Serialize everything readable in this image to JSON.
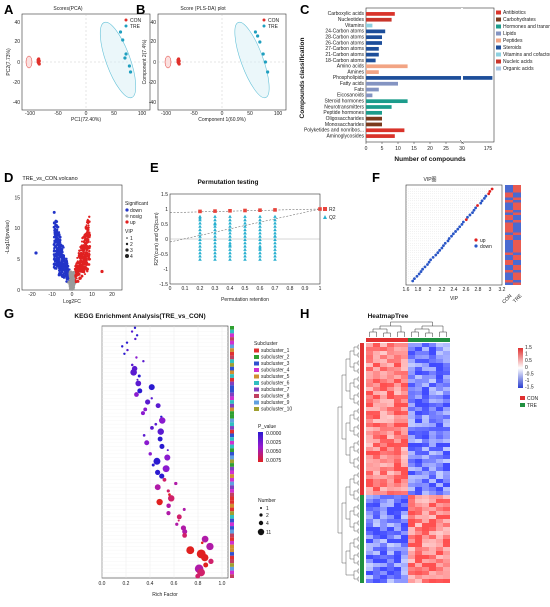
{
  "panels": {
    "A": {
      "letter": "A",
      "title": "Scores(PCA)",
      "xlabel": "PC1(72.40%)",
      "ylabel": "PC2(7.73%)",
      "legend": [
        "CON",
        "TRE"
      ],
      "colors": {
        "CON": "#e0302b",
        "TRE": "#1f9fbf"
      },
      "xticks": [
        "-100",
        "-50",
        "0",
        "50",
        "100"
      ],
      "yticks": [
        "40",
        "20",
        "0",
        "-20",
        "-40"
      ]
    },
    "B": {
      "letter": "B",
      "title": "Score (PLS-DA) plot",
      "xlabel": "Component 1(60.9%)",
      "ylabel": "Component 2(7.4%)",
      "legend": [
        "CON",
        "TRE"
      ],
      "xticks": [
        "-100",
        "-50",
        "0",
        "50",
        "100"
      ],
      "yticks": [
        "40",
        "20",
        "0",
        "-20",
        "-40"
      ]
    },
    "C": {
      "letter": "C",
      "ylabel": "Compounds classification",
      "xlabel": "Number of compounds",
      "xticks": [
        "0",
        "5",
        "10",
        "15",
        "20",
        "25",
        "30",
        "175"
      ],
      "legend": [
        {
          "name": "Antibiotics",
          "color": "#d9332a"
        },
        {
          "name": "Carbohydrates",
          "color": "#7b3a1d"
        },
        {
          "name": "Hormones and transmitters",
          "color": "#1c9c8c"
        },
        {
          "name": "Lipids",
          "color": "#8494c2"
        },
        {
          "name": "Peptides",
          "color": "#f2a484"
        },
        {
          "name": "Steroids",
          "color": "#1d4e9a"
        },
        {
          "name": "Vitamins and cofactors",
          "color": "#8dd0e0"
        },
        {
          "name": "Nucleic acids",
          "color": "#c9352b"
        },
        {
          "name": "Organic acids",
          "color": "#a7c6e3"
        }
      ]
    },
    "D": {
      "letter": "D",
      "title": "TRE_vs_CON.volcano",
      "xlabel": "Log2FC",
      "ylabel": "-Log10(pvalue)",
      "legend_title": "Significant",
      "legend": [
        {
          "name": "down",
          "color": "#2234c8"
        },
        {
          "name": "nosig",
          "color": "#9a9a9a"
        },
        {
          "name": "up",
          "color": "#e02020"
        }
      ],
      "vip_title": "VIP",
      "vip_values": [
        "1",
        "2",
        "3",
        "4"
      ],
      "xticks": [
        "-20",
        "-10",
        "0",
        "10",
        "20"
      ],
      "yticks": [
        "0",
        "5",
        "10",
        "15"
      ]
    },
    "E": {
      "letter": "E",
      "title": "Permutation testing",
      "xlabel": "Permutation retention",
      "ylabel": "R2Y(cum) and Q2(cum)",
      "legend": [
        {
          "name": "R2",
          "color": "#e8453c"
        },
        {
          "name": "Q2",
          "color": "#28b0d0"
        }
      ],
      "xticks": [
        "0",
        "0.1",
        "0.2",
        "0.3",
        "0.4",
        "0.5",
        "0.6",
        "0.7",
        "0.8",
        "0.9",
        "1"
      ],
      "yticks": [
        "1.5",
        "1",
        "0.5",
        "0",
        "-0.5",
        "-1",
        "-1.5"
      ]
    },
    "F": {
      "letter": "F",
      "title": "VIP图",
      "xlabel": "VIP",
      "xticks": [
        "1.6",
        "1.8",
        "2",
        "2.2",
        "2.4",
        "2.6",
        "2.8",
        "3",
        "3.2"
      ],
      "legend": [
        {
          "name": "up",
          "color": "#e02020"
        },
        {
          "name": "down",
          "color": "#2a56c6"
        }
      ],
      "heat_cols": [
        "CON",
        "TRE"
      ]
    },
    "G": {
      "letter": "G",
      "title": "KEGG Enrichment Analysis(TRE_vs_CON)",
      "xlabel": "Rich Factor",
      "xticks": [
        "0.0",
        "0.2",
        "0.4",
        "0.6",
        "0.8",
        "1.0"
      ],
      "pvalue_title": "P_value",
      "pvalue_ticks": [
        "0.0000",
        "0.0025",
        "0.0050",
        "0.0075"
      ],
      "number_title": "Number",
      "number_values": [
        "1",
        "2",
        "4",
        "11"
      ],
      "subcluster_title": "Subcluster",
      "subclusters": [
        "subcluster_1",
        "subcluster_2",
        "subcluster_3",
        "subcluster_4",
        "subcluster_5",
        "subcluster_6",
        "subcluster_7",
        "subcluster_8",
        "subcluster_9",
        "subcluster_10"
      ],
      "subcluster_colors": [
        "#e03030",
        "#30a030",
        "#3050d0",
        "#d030d0",
        "#d09030",
        "#30c0c0",
        "#8040c0",
        "#c04060",
        "#60a0e0",
        "#a0a030"
      ]
    },
    "H": {
      "letter": "H",
      "title": "HeatmapTree",
      "legend": [
        {
          "name": "CON",
          "color": "#e03030"
        },
        {
          "name": "TRE",
          "color": "#209040"
        }
      ],
      "scale_ticks": [
        "1.5",
        "1",
        "0.5",
        "0",
        "-0.5",
        "-1",
        "-1.5"
      ]
    }
  },
  "chart_data": [
    {
      "type": "scatter",
      "title": "Scores(PCA)",
      "xlabel": "PC1(72.40%)",
      "ylabel": "PC2(7.73%)",
      "series": [
        {
          "name": "CON",
          "points": [
            [
              -85,
              3
            ],
            [
              -84,
              1
            ],
            [
              -86,
              0
            ],
            [
              -85,
              -1
            ],
            [
              -84,
              -2
            ],
            [
              -86,
              2
            ]
          ]
        },
        {
          "name": "TRE",
          "points": [
            [
              62,
              30
            ],
            [
              66,
              22
            ],
            [
              72,
              8
            ],
            [
              70,
              4
            ],
            [
              78,
              -4
            ],
            [
              80,
              -10
            ]
          ]
        }
      ]
    },
    {
      "type": "scatter",
      "title": "Score (PLS-DA) plot",
      "xlabel": "Component 1(60.9%)",
      "ylabel": "Component 2(7.4%)",
      "series": [
        {
          "name": "CON",
          "points": [
            [
              -78,
              3
            ],
            [
              -77,
              1
            ],
            [
              -79,
              0
            ],
            [
              -78,
              -1
            ],
            [
              -77,
              -2
            ],
            [
              -79,
              2
            ]
          ]
        },
        {
          "name": "TRE",
          "points": [
            [
              60,
              30
            ],
            [
              64,
              26
            ],
            [
              68,
              20
            ],
            [
              74,
              8
            ],
            [
              78,
              0
            ],
            [
              82,
              -10
            ]
          ]
        }
      ]
    },
    {
      "type": "bar",
      "xlabel": "Number of compounds",
      "ylabel": "Compounds classification",
      "categories": [
        "Carboxylic acids",
        "Nucleotides",
        "Vitamins",
        "24-Carbon atoms",
        "28-Carbon atoms",
        "26-Carbon atoms",
        "27-Carbon atoms",
        "21-Carbon atoms",
        "18-Carbon atoms",
        "Amino acids",
        "Amines",
        "Phospholipids",
        "Fatty acids",
        "Fats",
        "Eicosanoids",
        "Steroid hormones",
        "Neurotransmitters",
        "Peptide hormones",
        "Oligosaccharides",
        "Monosaccharides",
        "Polyketides and nonribos...",
        "Aminoglycosides"
      ],
      "values": [
        9,
        8,
        2,
        6,
        5,
        5,
        4,
        4,
        3,
        13,
        4,
        175,
        10,
        4,
        2,
        13,
        8,
        5,
        5,
        5,
        12,
        9
      ],
      "category_colors": [
        "#d9332a",
        "#c9352b",
        "#8dd0e0",
        "#1d4e9a",
        "#1d4e9a",
        "#1d4e9a",
        "#1d4e9a",
        "#1d4e9a",
        "#1d4e9a",
        "#f2a484",
        "#f2a484",
        "#1d4e9a",
        "#8494c2",
        "#8494c2",
        "#8494c2",
        "#1c9c8c",
        "#1c9c8c",
        "#1c9c8c",
        "#7b3a1d",
        "#7b3a1d",
        "#d9332a",
        "#d9332a"
      ]
    },
    {
      "type": "scatter",
      "title": "TRE_vs_CON.volcano",
      "xlabel": "Log2FC",
      "ylabel": "-Log10(pvalue)",
      "xlim": [
        -25,
        25
      ],
      "ylim": [
        0,
        17
      ]
    },
    {
      "type": "scatter",
      "title": "Permutation testing",
      "xlabel": "Permutation retention",
      "ylabel": "R2Y(cum) and Q2(cum)",
      "xlim": [
        0,
        1
      ],
      "ylim": [
        -1.5,
        1.5
      ],
      "series": [
        {
          "name": "R2",
          "points": [
            [
              0.2,
              0.92
            ],
            [
              0.3,
              0.93
            ],
            [
              0.4,
              0.94
            ],
            [
              0.5,
              0.95
            ],
            [
              0.6,
              0.96
            ],
            [
              0.7,
              0.97
            ],
            [
              1.0,
              1.0
            ]
          ]
        },
        {
          "name": "Q2",
          "points": [
            [
              0.2,
              0.7
            ],
            [
              0.3,
              0.5
            ],
            [
              0.4,
              0.3
            ],
            [
              0.4,
              -0.2
            ],
            [
              0.5,
              0.2
            ],
            [
              0.6,
              -0.3
            ],
            [
              0.7,
              0.1
            ],
            [
              1.0,
              1.0
            ]
          ]
        }
      ]
    },
    {
      "type": "scatter",
      "title": "VIP图",
      "xlabel": "VIP",
      "xlim": [
        1.6,
        3.2
      ]
    },
    {
      "type": "scatter",
      "title": "KEGG Enrichment Analysis(TRE_vs_CON)",
      "xlabel": "Rich Factor",
      "xlim": [
        0,
        1.05
      ]
    },
    {
      "type": "heatmap",
      "title": "HeatmapTree",
      "columns": [
        "CON",
        "CON",
        "CON",
        "CON",
        "CON",
        "CON",
        "TRE",
        "TRE",
        "TRE",
        "TRE",
        "TRE",
        "TRE"
      ]
    }
  ]
}
